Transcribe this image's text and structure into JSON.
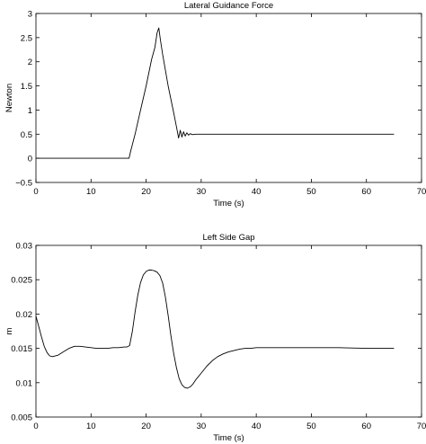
{
  "chart_data": [
    {
      "type": "line",
      "title": "Lateral Guidance Force",
      "xlabel": "Time (s)",
      "ylabel": "Newton",
      "xlim": [
        0,
        70
      ],
      "ylim": [
        -0.5,
        3
      ],
      "xticks": [
        0,
        10,
        20,
        30,
        40,
        50,
        60,
        70
      ],
      "xtick_labels": [
        "0",
        "10",
        "20",
        "30",
        "40",
        "50",
        "60",
        "70"
      ],
      "yticks": [
        -0.5,
        0,
        0.5,
        1,
        1.5,
        2,
        2.5,
        3
      ],
      "ytick_labels": [
        "−0.5",
        "0",
        "0.5",
        "1",
        "1.5",
        "2",
        "2.5",
        "3"
      ],
      "grid": false,
      "series": [
        {
          "x": [
            0,
            16.9,
            17.2,
            18,
            19,
            20,
            21,
            21.6,
            22,
            22.3,
            22.6,
            23,
            24,
            25,
            25.6,
            25.9,
            26.2,
            26.5,
            26.8,
            27.1,
            27.4,
            27.7,
            28,
            28.4,
            29,
            30,
            40,
            50,
            60,
            65
          ],
          "y": [
            0,
            0,
            0.15,
            0.5,
            1.0,
            1.5,
            2.05,
            2.3,
            2.6,
            2.7,
            2.45,
            2.15,
            1.5,
            0.95,
            0.6,
            0.42,
            0.58,
            0.44,
            0.55,
            0.46,
            0.53,
            0.48,
            0.51,
            0.49,
            0.5,
            0.5,
            0.5,
            0.5,
            0.5,
            0.5
          ]
        }
      ]
    },
    {
      "type": "line",
      "title": "Left Side Gap",
      "xlabel": "Time (s)",
      "ylabel": "m",
      "xlim": [
        0,
        70
      ],
      "ylim": [
        0.005,
        0.03
      ],
      "xticks": [
        0,
        10,
        20,
        30,
        40,
        50,
        60,
        70
      ],
      "xtick_labels": [
        "0",
        "10",
        "20",
        "30",
        "40",
        "50",
        "60",
        "70"
      ],
      "yticks": [
        0.005,
        0.01,
        0.015,
        0.02,
        0.025,
        0.03
      ],
      "ytick_labels": [
        "0.005",
        "0.01",
        "0.015",
        "0.02",
        "0.025",
        "0.03"
      ],
      "grid": false,
      "series": [
        {
          "x": [
            0,
            0.5,
            1,
            1.5,
            2,
            2.5,
            3,
            4,
            5,
            6,
            7,
            8,
            9,
            10,
            11,
            12,
            13,
            14,
            15,
            16,
            16.5,
            17,
            17.5,
            18,
            18.5,
            19,
            19.5,
            20,
            20.5,
            21,
            21.5,
            22,
            22.5,
            23,
            23.5,
            24,
            24.5,
            25,
            25.5,
            26,
            26.5,
            27,
            27.5,
            28,
            28.5,
            29,
            30,
            31,
            32,
            33,
            34,
            35,
            36,
            37,
            38,
            39,
            40,
            42,
            45,
            50,
            55,
            60,
            65
          ],
          "y": [
            0.0197,
            0.0182,
            0.0167,
            0.0153,
            0.0144,
            0.0139,
            0.0138,
            0.014,
            0.0145,
            0.015,
            0.0153,
            0.0153,
            0.0152,
            0.0151,
            0.015,
            0.015,
            0.015,
            0.0151,
            0.0151,
            0.0152,
            0.0152,
            0.0154,
            0.0175,
            0.0203,
            0.0228,
            0.0246,
            0.0257,
            0.0262,
            0.0264,
            0.0264,
            0.0263,
            0.0261,
            0.0256,
            0.0245,
            0.0225,
            0.0198,
            0.0169,
            0.0143,
            0.0122,
            0.0106,
            0.0097,
            0.0093,
            0.0092,
            0.0094,
            0.0098,
            0.0104,
            0.0114,
            0.0124,
            0.0132,
            0.0138,
            0.0142,
            0.0145,
            0.0147,
            0.0149,
            0.015,
            0.015,
            0.0151,
            0.0151,
            0.0151,
            0.0151,
            0.0151,
            0.015,
            0.015
          ]
        }
      ]
    }
  ]
}
